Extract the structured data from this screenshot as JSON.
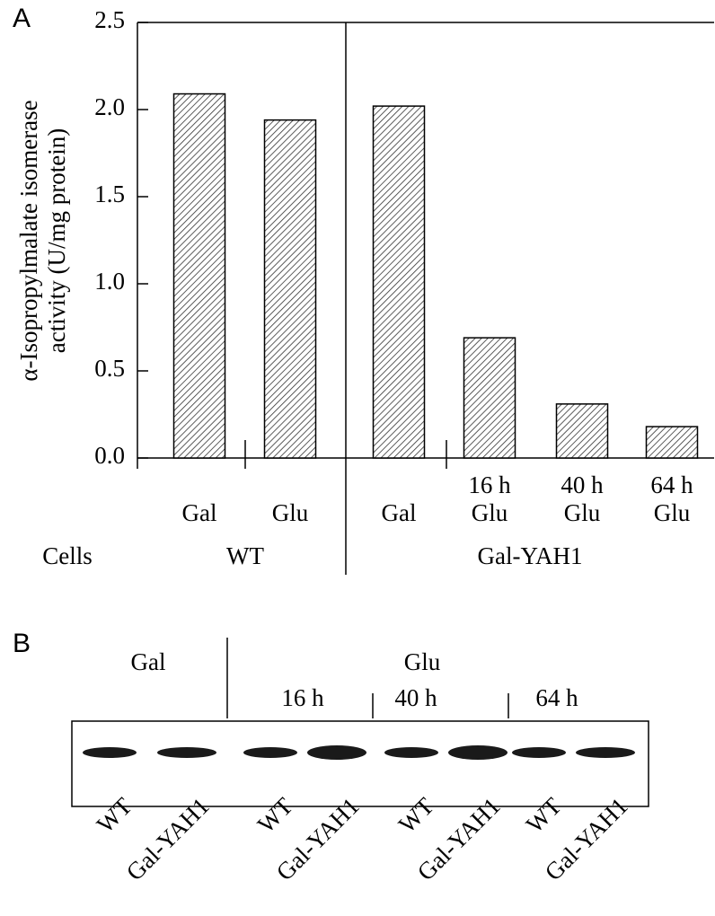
{
  "chart_data": {
    "type": "bar",
    "panel_label": "A",
    "ylabel": [
      "α-Isopropylmalate isomerase",
      "activity (U/mg protein)"
    ],
    "categories": [
      "Gal",
      "Glu",
      "Gal",
      "16 h\nGlu",
      "40 h\nGlu",
      "64 h\nGlu"
    ],
    "values": [
      2.09,
      1.94,
      2.02,
      0.69,
      0.31,
      0.18
    ],
    "color": "#333333",
    "hatch": true,
    "ylim": [
      0,
      2.5
    ],
    "yticks": [
      {
        "value": 0,
        "label": "0.0"
      },
      0.5,
      {
        "value": 1,
        "label": "1.0"
      },
      1.5,
      {
        "value": 2,
        "label": "2.0"
      },
      2.5
    ],
    "row_label": "Cells",
    "groups": [
      "WT",
      "Gal-YAH1"
    ]
  },
  "blot": {
    "panel_label": "B",
    "gal": "Gal",
    "glu": "Glu",
    "times": [
      "16 h",
      "40 h",
      "64 h"
    ],
    "lanes": [
      "WT",
      "Gal-YAH1",
      "WT",
      "Gal-YAH1",
      "WT",
      "Gal-YAH1",
      "WT",
      "Gal-YAH1"
    ]
  }
}
